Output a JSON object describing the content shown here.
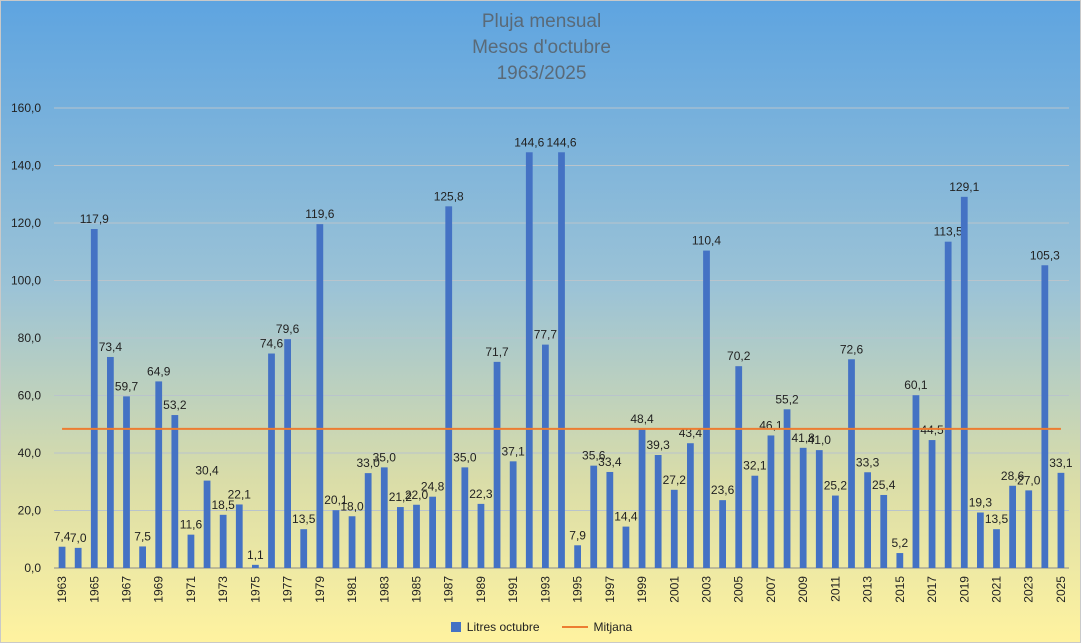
{
  "chart_data": {
    "type": "bar",
    "title_lines": [
      "Pluja mensual",
      "Mesos d'octubre",
      "1963/2025"
    ],
    "categories": [
      "1963",
      "1964",
      "1965",
      "1966",
      "1967",
      "1968",
      "1969",
      "1970",
      "1971",
      "1972",
      "1973",
      "1974",
      "1975",
      "1976",
      "1977",
      "1978",
      "1979",
      "1980",
      "1981",
      "1982",
      "1983",
      "1984",
      "1985",
      "1986",
      "1987",
      "1988",
      "1989",
      "1990",
      "1991",
      "1992",
      "1993",
      "1994",
      "1995",
      "1996",
      "1997",
      "1998",
      "1999",
      "2000",
      "2001",
      "2002",
      "2003",
      "2004",
      "2005",
      "2006",
      "2007",
      "2008",
      "2009",
      "2010",
      "2011",
      "2012",
      "2013",
      "2014",
      "2015",
      "2016",
      "2017",
      "2018",
      "2019",
      "2020",
      "2021",
      "2022",
      "2023",
      "2024",
      "2025"
    ],
    "x_tick_labels": [
      "1963",
      "1965",
      "1967",
      "1969",
      "1971",
      "1973",
      "1975",
      "1977",
      "1979",
      "1981",
      "1983",
      "1985",
      "1987",
      "1989",
      "1991",
      "1993",
      "1995",
      "1997",
      "1999",
      "2001",
      "2003",
      "2005",
      "2007",
      "2009",
      "2011",
      "2013",
      "2015",
      "2017",
      "2019",
      "2021",
      "2023",
      "2025"
    ],
    "series": [
      {
        "name": "Litres octubre",
        "color": "#4472c4",
        "values": [
          7.4,
          7.0,
          117.9,
          73.4,
          59.7,
          7.5,
          64.9,
          53.2,
          11.6,
          30.4,
          18.5,
          22.1,
          1.1,
          74.6,
          79.6,
          13.5,
          119.6,
          20.1,
          18.0,
          33.0,
          35.0,
          21.2,
          22.0,
          24.8,
          125.8,
          35.0,
          22.3,
          71.7,
          37.1,
          144.6,
          77.7,
          144.6,
          7.9,
          35.6,
          33.4,
          14.4,
          48.4,
          39.3,
          27.2,
          43.4,
          110.4,
          23.6,
          70.2,
          32.1,
          46.1,
          55.2,
          41.8,
          41.0,
          25.2,
          72.6,
          33.3,
          25.4,
          5.2,
          60.1,
          44.5,
          113.5,
          129.1,
          19.3,
          13.5,
          28.6,
          27.0,
          105.3,
          33.1
        ],
        "labels": [
          "7,4",
          "7,0",
          "117,9",
          "73,4",
          "59,7",
          "7,5",
          "64,9",
          "53,2",
          "11,6",
          "30,4",
          "18,5",
          "22,1",
          "1,1",
          "74,6",
          "79,6",
          "13,5",
          "119,6",
          "20,1",
          "18,0",
          "33,0",
          "35,0",
          "21,2",
          "22,0",
          "24,8",
          "125,8",
          "35,0",
          "22,3",
          "71,7",
          "37,1",
          "144,6",
          "77,7",
          "144,6",
          "7,9",
          "35,6",
          "33,4",
          "14,4",
          "48,4",
          "39,3",
          "27,2",
          "43,4",
          "110,4",
          "23,6",
          "70,2",
          "32,1",
          "46,1",
          "55,2",
          "41,8",
          "41,0",
          "25,2",
          "72,6",
          "33,3",
          "25,4",
          "5,2",
          "60,1",
          "44,5",
          "113,5",
          "129,1",
          "19,3",
          "13,5",
          "28,6",
          "27,0",
          "105,3",
          "33,1"
        ]
      },
      {
        "name": "Mitjana",
        "color": "#ed7d31",
        "type": "line",
        "value": 48.4
      }
    ],
    "ylim": [
      0,
      160
    ],
    "y_ticks": [
      "0,0",
      "20,0",
      "40,0",
      "60,0",
      "80,0",
      "100,0",
      "120,0",
      "140,0",
      "160,0"
    ],
    "grid": true,
    "legend_position": "bottom"
  }
}
